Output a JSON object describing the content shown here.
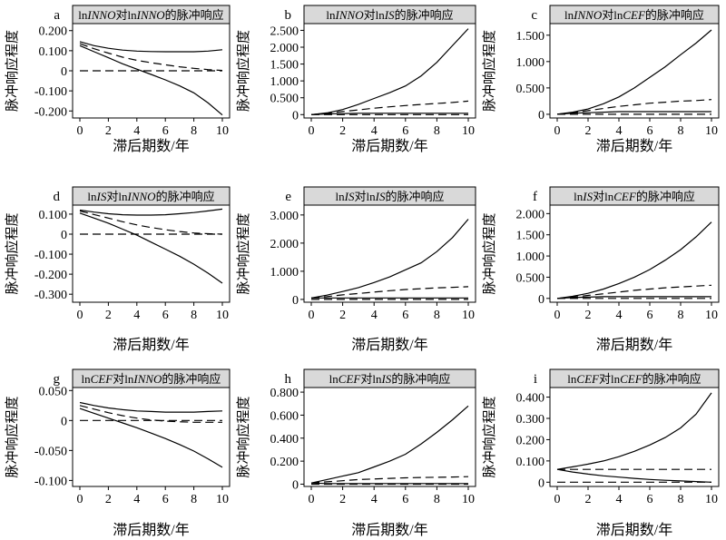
{
  "figure": {
    "xlabel": "滞后期数/年",
    "ylabel": "脉冲响应程度",
    "line_color": "#000000",
    "title_bg": "#d9d9d9"
  },
  "chart_data": [
    {
      "type": "line",
      "letter": "a",
      "title_parts": [
        {
          "t": "ln",
          "i": false
        },
        {
          "t": "INNO",
          "i": true
        },
        {
          "t": "对ln",
          "i": false
        },
        {
          "t": "INNO",
          "i": true
        },
        {
          "t": "的脉冲响应",
          "i": false
        }
      ],
      "x": [
        0,
        1,
        2,
        3,
        4,
        5,
        6,
        7,
        8,
        9,
        10
      ],
      "xticks": [
        0,
        2,
        4,
        6,
        8,
        10
      ],
      "yticks": [
        -0.2,
        -0.1,
        0,
        0.1,
        0.2
      ],
      "yticklabels": [
        "-0.200",
        "-0.100",
        "0",
        "0.100",
        "0.200"
      ],
      "ylim": [
        -0.235,
        0.235
      ],
      "series": [
        {
          "style": "solid",
          "values": [
            0.145,
            0.125,
            0.112,
            0.103,
            0.098,
            0.096,
            0.095,
            0.095,
            0.095,
            0.098,
            0.105
          ]
        },
        {
          "style": "dashed",
          "values": [
            0.135,
            0.11,
            0.088,
            0.068,
            0.052,
            0.04,
            0.03,
            0.02,
            0.012,
            0.006,
            0.002
          ]
        },
        {
          "style": "solid",
          "values": [
            0.125,
            0.095,
            0.065,
            0.035,
            0.008,
            -0.018,
            -0.045,
            -0.075,
            -0.11,
            -0.16,
            -0.22
          ]
        },
        {
          "style": "dashed",
          "values": [
            0,
            0,
            0,
            0,
            0,
            0,
            0,
            0,
            0,
            0,
            0
          ]
        }
      ]
    },
    {
      "type": "line",
      "letter": "b",
      "title_parts": [
        {
          "t": "ln",
          "i": false
        },
        {
          "t": "INNO",
          "i": true
        },
        {
          "t": "对ln",
          "i": false
        },
        {
          "t": "IS",
          "i": true
        },
        {
          "t": "的脉冲响应",
          "i": false
        }
      ],
      "x": [
        0,
        1,
        2,
        3,
        4,
        5,
        6,
        7,
        8,
        9,
        10
      ],
      "xticks": [
        0,
        2,
        4,
        6,
        8,
        10
      ],
      "yticks": [
        0,
        0.5,
        1,
        1.5,
        2,
        2.5
      ],
      "yticklabels": [
        "0",
        "0.500",
        "1.000",
        "1.500",
        "2.000",
        "2.500"
      ],
      "ylim": [
        -0.1,
        2.7
      ],
      "series": [
        {
          "style": "solid",
          "values": [
            0,
            0.05,
            0.15,
            0.3,
            0.48,
            0.65,
            0.85,
            1.15,
            1.55,
            2.05,
            2.55
          ]
        },
        {
          "style": "dashed",
          "values": [
            0,
            0.04,
            0.09,
            0.14,
            0.19,
            0.23,
            0.27,
            0.3,
            0.33,
            0.36,
            0.4
          ]
        },
        {
          "style": "solid",
          "values": [
            0,
            0.02,
            0.03,
            0.04,
            0.04,
            0.04,
            0.04,
            0.04,
            0.04,
            0.04,
            0.04
          ]
        },
        {
          "style": "dashed",
          "values": [
            0,
            0,
            0,
            0,
            0,
            0,
            0,
            0,
            0,
            0,
            0
          ]
        }
      ]
    },
    {
      "type": "line",
      "letter": "c",
      "title_parts": [
        {
          "t": "ln",
          "i": false
        },
        {
          "t": "INNO",
          "i": true
        },
        {
          "t": "对ln",
          "i": false
        },
        {
          "t": "CEF",
          "i": true
        },
        {
          "t": "的脉冲响应",
          "i": false
        }
      ],
      "x": [
        0,
        1,
        2,
        3,
        4,
        5,
        6,
        7,
        8,
        9,
        10
      ],
      "xticks": [
        0,
        2,
        4,
        6,
        8,
        10
      ],
      "yticks": [
        0,
        0.5,
        1,
        1.5
      ],
      "yticklabels": [
        "0",
        "0.500",
        "1.000",
        "1.500"
      ],
      "ylim": [
        -0.07,
        1.72
      ],
      "series": [
        {
          "style": "solid",
          "values": [
            0,
            0.04,
            0.1,
            0.2,
            0.33,
            0.5,
            0.7,
            0.9,
            1.13,
            1.35,
            1.6
          ]
        },
        {
          "style": "dashed",
          "values": [
            0,
            0.03,
            0.07,
            0.11,
            0.15,
            0.18,
            0.21,
            0.23,
            0.25,
            0.26,
            0.28
          ]
        },
        {
          "style": "solid",
          "values": [
            0,
            0.02,
            0.03,
            0.04,
            0.05,
            0.05,
            0.05,
            0.05,
            0.05,
            0.05,
            0.05
          ]
        },
        {
          "style": "dashed",
          "values": [
            0,
            0,
            0,
            0,
            0,
            0,
            0,
            0,
            0,
            0,
            0
          ]
        }
      ]
    },
    {
      "type": "line",
      "letter": "d",
      "title_parts": [
        {
          "t": "ln",
          "i": false
        },
        {
          "t": "IS",
          "i": true
        },
        {
          "t": "对ln",
          "i": false
        },
        {
          "t": "INNO",
          "i": true
        },
        {
          "t": "的脉冲响应",
          "i": false
        }
      ],
      "x": [
        0,
        1,
        2,
        3,
        4,
        5,
        6,
        7,
        8,
        9,
        10
      ],
      "xticks": [
        0,
        2,
        4,
        6,
        8,
        10
      ],
      "yticks": [
        -0.3,
        -0.2,
        -0.1,
        0,
        0.1
      ],
      "yticklabels": [
        "-0.300",
        "-0.200",
        "-0.100",
        "0",
        "0.100"
      ],
      "ylim": [
        -0.34,
        0.145
      ],
      "series": [
        {
          "style": "solid",
          "values": [
            0.12,
            0.11,
            0.102,
            0.097,
            0.095,
            0.095,
            0.097,
            0.102,
            0.108,
            0.116,
            0.125
          ]
        },
        {
          "style": "dashed",
          "values": [
            0.115,
            0.098,
            0.08,
            0.062,
            0.046,
            0.033,
            0.022,
            0.013,
            0.006,
            0.002,
            0.0
          ]
        },
        {
          "style": "solid",
          "values": [
            0.105,
            0.08,
            0.055,
            0.025,
            -0.005,
            -0.04,
            -0.075,
            -0.11,
            -0.15,
            -0.195,
            -0.245
          ]
        },
        {
          "style": "dashed",
          "values": [
            0,
            0,
            0,
            0,
            0,
            0,
            0,
            0,
            0,
            0,
            0
          ]
        }
      ]
    },
    {
      "type": "line",
      "letter": "e",
      "title_parts": [
        {
          "t": "ln",
          "i": false
        },
        {
          "t": "IS",
          "i": true
        },
        {
          "t": "对ln",
          "i": false
        },
        {
          "t": "IS",
          "i": true
        },
        {
          "t": "的脉冲响应",
          "i": false
        }
      ],
      "x": [
        0,
        1,
        2,
        3,
        4,
        5,
        6,
        7,
        8,
        9,
        10
      ],
      "xticks": [
        0,
        2,
        4,
        6,
        8,
        10
      ],
      "yticks": [
        0,
        1,
        2,
        3
      ],
      "yticklabels": [
        "0",
        "1.000",
        "2.000",
        "3.000"
      ],
      "ylim": [
        -0.1,
        3.35
      ],
      "series": [
        {
          "style": "solid",
          "values": [
            0.05,
            0.15,
            0.28,
            0.42,
            0.6,
            0.8,
            1.05,
            1.3,
            1.7,
            2.2,
            2.85
          ]
        },
        {
          "style": "dashed",
          "values": [
            0.05,
            0.1,
            0.16,
            0.21,
            0.26,
            0.31,
            0.35,
            0.38,
            0.41,
            0.43,
            0.45
          ]
        },
        {
          "style": "solid",
          "values": [
            0.05,
            0.05,
            0.05,
            0.05,
            0.05,
            0.05,
            0.05,
            0.05,
            0.05,
            0.05,
            0.05
          ]
        },
        {
          "style": "dashed",
          "values": [
            0,
            0,
            0,
            0,
            0,
            0,
            0,
            0,
            0,
            0,
            0
          ]
        }
      ]
    },
    {
      "type": "line",
      "letter": "f",
      "title_parts": [
        {
          "t": "ln",
          "i": false
        },
        {
          "t": "IS",
          "i": true
        },
        {
          "t": "对ln",
          "i": false
        },
        {
          "t": "CEF",
          "i": true
        },
        {
          "t": "的脉冲响应",
          "i": false
        }
      ],
      "x": [
        0,
        1,
        2,
        3,
        4,
        5,
        6,
        7,
        8,
        9,
        10
      ],
      "xticks": [
        0,
        2,
        4,
        6,
        8,
        10
      ],
      "yticks": [
        0,
        0.5,
        1,
        1.5,
        2
      ],
      "yticklabels": [
        "0",
        "0.500",
        "1.000",
        "1.500",
        "2.000"
      ],
      "ylim": [
        -0.09,
        2.2
      ],
      "series": [
        {
          "style": "solid",
          "values": [
            0,
            0.05,
            0.12,
            0.22,
            0.35,
            0.5,
            0.68,
            0.9,
            1.15,
            1.45,
            1.8
          ]
        },
        {
          "style": "dashed",
          "values": [
            0,
            0.03,
            0.07,
            0.11,
            0.15,
            0.19,
            0.22,
            0.25,
            0.27,
            0.29,
            0.31
          ]
        },
        {
          "style": "solid",
          "values": [
            0,
            0.02,
            0.03,
            0.04,
            0.04,
            0.04,
            0.04,
            0.04,
            0.04,
            0.04,
            0.04
          ]
        },
        {
          "style": "dashed",
          "values": [
            0,
            0,
            0,
            0,
            0,
            0,
            0,
            0,
            0,
            0,
            0
          ]
        }
      ]
    },
    {
      "type": "line",
      "letter": "g",
      "title_parts": [
        {
          "t": "ln",
          "i": false
        },
        {
          "t": "CEF",
          "i": true
        },
        {
          "t": "对ln",
          "i": false
        },
        {
          "t": "INNO",
          "i": true
        },
        {
          "t": "的脉冲响应",
          "i": false
        }
      ],
      "x": [
        0,
        1,
        2,
        3,
        4,
        5,
        6,
        7,
        8,
        9,
        10
      ],
      "xticks": [
        0,
        2,
        4,
        6,
        8,
        10
      ],
      "yticks": [
        -0.1,
        -0.05,
        0,
        0.05
      ],
      "yticklabels": [
        "-0.100",
        "-0.050",
        "0",
        "0.050"
      ],
      "ylim": [
        -0.11,
        0.055
      ],
      "series": [
        {
          "style": "solid",
          "values": [
            0.03,
            0.025,
            0.021,
            0.018,
            0.016,
            0.015,
            0.014,
            0.014,
            0.014,
            0.015,
            0.016
          ]
        },
        {
          "style": "dashed",
          "values": [
            0.025,
            0.019,
            0.013,
            0.008,
            0.004,
            0.001,
            -0.001,
            -0.002,
            -0.003,
            -0.003,
            -0.003
          ]
        },
        {
          "style": "solid",
          "values": [
            0.02,
            0.012,
            0.004,
            -0.004,
            -0.012,
            -0.021,
            -0.03,
            -0.04,
            -0.051,
            -0.064,
            -0.078
          ]
        },
        {
          "style": "dashed",
          "values": [
            0,
            0,
            0,
            0,
            0,
            0,
            0,
            0,
            0,
            0,
            0
          ]
        }
      ]
    },
    {
      "type": "line",
      "letter": "h",
      "title_parts": [
        {
          "t": "ln",
          "i": false
        },
        {
          "t": "CEF",
          "i": true
        },
        {
          "t": "对ln",
          "i": false
        },
        {
          "t": "IS",
          "i": true
        },
        {
          "t": "的脉冲响应",
          "i": false
        }
      ],
      "x": [
        0,
        1,
        2,
        3,
        4,
        5,
        6,
        7,
        8,
        9,
        10
      ],
      "xticks": [
        0,
        2,
        4,
        6,
        8,
        10
      ],
      "yticks": [
        0,
        0.2,
        0.4,
        0.6,
        0.8
      ],
      "yticklabels": [
        "0",
        "0.200",
        "0.400",
        "0.600",
        "0.800"
      ],
      "ylim": [
        -0.02,
        0.84
      ],
      "series": [
        {
          "style": "solid",
          "values": [
            0.01,
            0.04,
            0.07,
            0.1,
            0.15,
            0.2,
            0.26,
            0.35,
            0.45,
            0.56,
            0.68
          ]
        },
        {
          "style": "dashed",
          "values": [
            0.01,
            0.02,
            0.03,
            0.04,
            0.045,
            0.05,
            0.055,
            0.058,
            0.06,
            0.062,
            0.065
          ]
        },
        {
          "style": "solid",
          "values": [
            0.01,
            0.005,
            0.005,
            0.005,
            0.005,
            0.005,
            0.005,
            0.005,
            0.005,
            0.005,
            0.005
          ]
        },
        {
          "style": "dashed",
          "values": [
            0,
            0,
            0,
            0,
            0,
            0,
            0,
            0,
            0,
            0,
            0
          ]
        }
      ]
    },
    {
      "type": "line",
      "letter": "i",
      "title_parts": [
        {
          "t": "ln",
          "i": false
        },
        {
          "t": "CEF",
          "i": true
        },
        {
          "t": "对ln",
          "i": false
        },
        {
          "t": "CEF",
          "i": true
        },
        {
          "t": "的脉冲响应",
          "i": false
        }
      ],
      "x": [
        0,
        1,
        2,
        3,
        4,
        5,
        6,
        7,
        8,
        9,
        10
      ],
      "xticks": [
        0,
        2,
        4,
        6,
        8,
        10
      ],
      "yticks": [
        0,
        0.1,
        0.2,
        0.3,
        0.4
      ],
      "yticklabels": [
        "0",
        "0.100",
        "0.200",
        "0.300",
        "0.400"
      ],
      "ylim": [
        -0.02,
        0.445
      ],
      "series": [
        {
          "style": "solid",
          "values": [
            0.06,
            0.072,
            0.085,
            0.1,
            0.12,
            0.145,
            0.175,
            0.21,
            0.255,
            0.32,
            0.42
          ]
        },
        {
          "style": "dashed",
          "values": [
            0.06,
            0.06,
            0.06,
            0.06,
            0.06,
            0.06,
            0.06,
            0.06,
            0.06,
            0.06,
            0.06
          ]
        },
        {
          "style": "solid",
          "values": [
            0.06,
            0.048,
            0.038,
            0.03,
            0.024,
            0.018,
            0.013,
            0.009,
            0.006,
            0.003,
            0.0
          ]
        },
        {
          "style": "dashed",
          "values": [
            0,
            0,
            0,
            0,
            0,
            0,
            0,
            0,
            0,
            0,
            0
          ]
        }
      ]
    }
  ]
}
